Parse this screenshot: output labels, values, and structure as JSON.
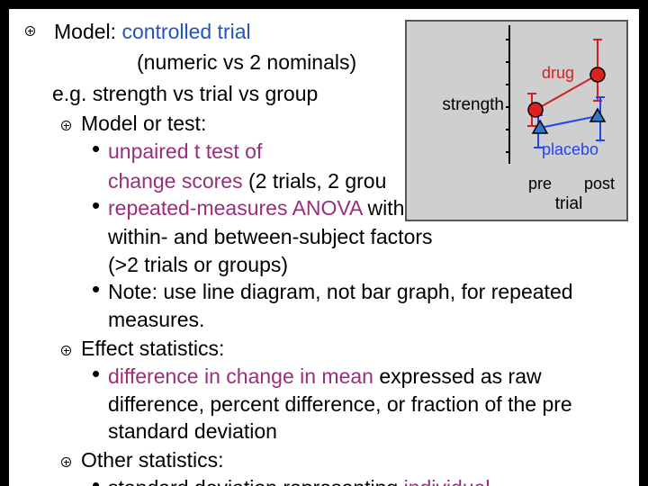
{
  "colors": {
    "blue": "#2255bb",
    "purple": "#992e7a",
    "drug": "#d62020",
    "placebo": "#2244ee",
    "marker_red": "#dd2020",
    "marker_blue": "#3377cc",
    "figure_bg": "#cfcfcf"
  },
  "lines": {
    "model_prefix": "Model: ",
    "model_name": "controlled trial",
    "numeric_vs": "(numeric vs 2 nominals)",
    "example": "e.g. strength vs trial vs group",
    "model_or_test": "Model or test:",
    "unpaired": "unpaired t test of",
    "change_scores": "change scores (2 trials, 2 grou",
    "rm_anova": "repeated-measures ANOVA",
    "with": " with",
    "factors": "within- and between-subject factors",
    "trials_or_groups": "(>2 trials or groups)",
    "note": "Note: use line diagram, not bar graph, for repeated",
    "measures": "measures.",
    "effect_stats": "Effect statistics:",
    "diff_in_change": "difference in change in mean",
    "expressed_as": " expressed as raw",
    "diff_percent": "difference, percent difference, or fraction of the pre",
    "std_dev": "standard deviation",
    "other_stats": "Other statistics:",
    "cut_off": "standard deviation representing individual"
  },
  "figure": {
    "ylabel": "strength",
    "xlabel": "trial",
    "ticks": [
      "pre",
      "post"
    ],
    "drug_label": "drug",
    "placebo_label": "placebo"
  }
}
